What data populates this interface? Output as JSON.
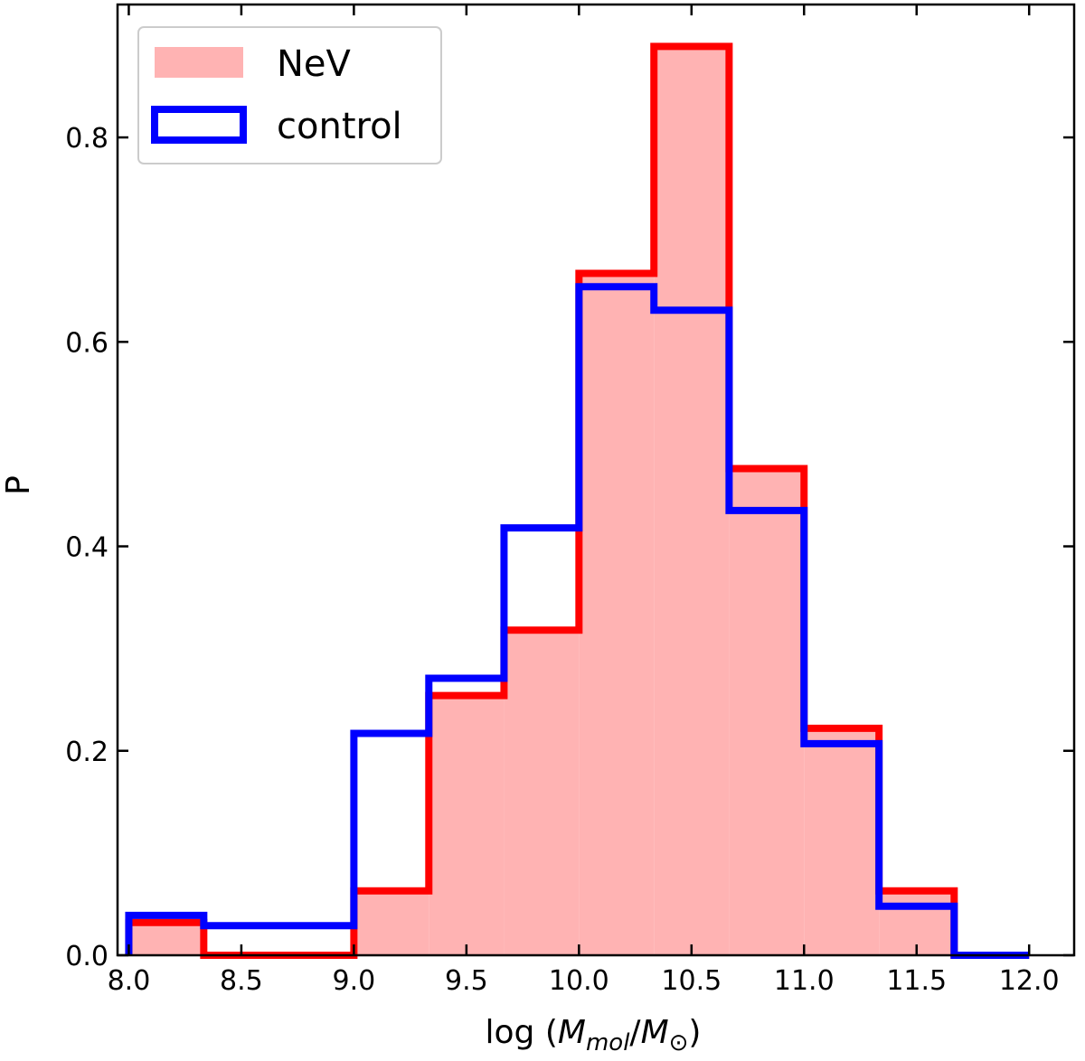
{
  "chart_data": {
    "type": "histogram",
    "xlabel_prefix": "log (",
    "xlabel_num": "M",
    "xlabel_num_sub": "mol",
    "xlabel_sep": "/",
    "xlabel_den": "M",
    "xlabel_den_sub": "⊙",
    "xlabel_suffix": ")",
    "ylabel": "P",
    "xlim": [
      7.95,
      12.2
    ],
    "ylim": [
      0,
      0.93
    ],
    "x_ticks": [
      8.0,
      8.5,
      9.0,
      9.5,
      10.0,
      10.5,
      11.0,
      11.5,
      12.0
    ],
    "x_tick_labels": [
      "8.0",
      "8.5",
      "9.0",
      "9.5",
      "10.0",
      "10.5",
      "11.0",
      "11.5",
      "12.0"
    ],
    "y_ticks": [
      0.0,
      0.2,
      0.4,
      0.6,
      0.8
    ],
    "y_tick_labels": [
      "0.0",
      "0.2",
      "0.4",
      "0.6",
      "0.8"
    ],
    "bin_edges": [
      8.0,
      8.333,
      8.667,
      9.0,
      9.333,
      9.667,
      10.0,
      10.333,
      10.667,
      11.0,
      11.333,
      11.667,
      12.0
    ],
    "legend_position": "top-left",
    "series": [
      {
        "name": "NeV",
        "style": "filled-step",
        "fill_color": "#ffb3b3",
        "edge_color": "#ff0000",
        "values": [
          0.032,
          0.0,
          0.0,
          0.063,
          0.254,
          0.318,
          0.667,
          0.889,
          0.476,
          0.222,
          0.063,
          0.0
        ]
      },
      {
        "name": "control",
        "style": "step",
        "edge_color": "#0000ff",
        "values": [
          0.039,
          0.029,
          0.029,
          0.217,
          0.271,
          0.418,
          0.654,
          0.631,
          0.435,
          0.207,
          0.048,
          0.0
        ]
      }
    ]
  }
}
